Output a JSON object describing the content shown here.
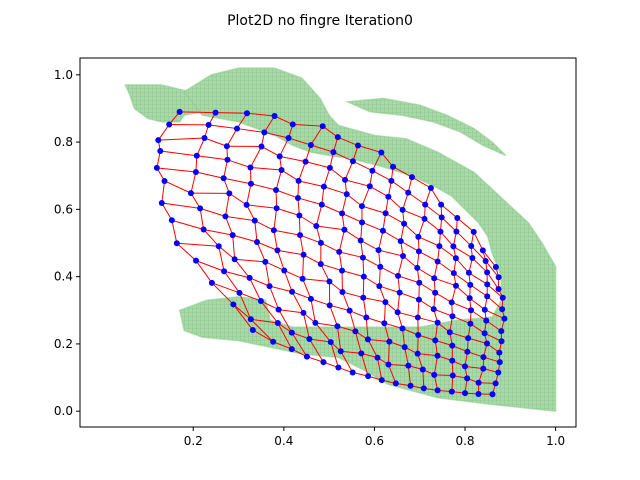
{
  "chart_data": {
    "type": "scatter",
    "title": "Plot2D no fingre Iteration0",
    "xlabel": "",
    "ylabel": "",
    "xlim": [
      -0.05,
      1.045
    ],
    "ylim": [
      -0.047,
      1.05
    ],
    "xticks": [
      0.2,
      0.4,
      0.6,
      0.8,
      1.0
    ],
    "xtick_labels": [
      "0.2",
      "0.4",
      "0.6",
      "0.8",
      "1.0"
    ],
    "yticks": [
      0.0,
      0.2,
      0.4,
      0.6,
      0.8,
      1.0
    ],
    "ytick_labels": [
      "0.0",
      "0.2",
      "0.4",
      "0.6",
      "0.8",
      "1.0"
    ],
    "grid": false,
    "colors": {
      "target_fill": "#8fce8f",
      "mesh_edges": "#ff0000",
      "mesh_nodes": "#0000ff"
    },
    "target_region": {
      "description": "green point cloud",
      "polygons": [
        [
          [
            0.05,
            0.97
          ],
          [
            0.13,
            0.97
          ],
          [
            0.19,
            0.95
          ],
          [
            0.22,
            0.93
          ],
          [
            0.22,
            0.89
          ],
          [
            0.18,
            0.88
          ],
          [
            0.17,
            0.86
          ],
          [
            0.13,
            0.86
          ],
          [
            0.1,
            0.87
          ],
          [
            0.07,
            0.9
          ],
          [
            0.06,
            0.94
          ]
        ],
        [
          [
            0.18,
            0.95
          ],
          [
            0.24,
            1.0
          ],
          [
            0.3,
            1.02
          ],
          [
            0.38,
            1.02
          ],
          [
            0.44,
            0.99
          ],
          [
            0.48,
            0.93
          ],
          [
            0.5,
            0.88
          ],
          [
            0.52,
            0.85
          ],
          [
            0.6,
            0.82
          ],
          [
            0.67,
            0.81
          ],
          [
            0.74,
            0.77
          ],
          [
            0.82,
            0.71
          ],
          [
            0.86,
            0.66
          ],
          [
            0.9,
            0.61
          ],
          [
            0.94,
            0.56
          ],
          [
            0.97,
            0.5
          ],
          [
            1.0,
            0.43
          ],
          [
            1.0,
            0.0
          ],
          [
            0.86,
            0.02
          ],
          [
            0.74,
            0.04
          ],
          [
            0.63,
            0.08
          ],
          [
            0.58,
            0.12
          ],
          [
            0.52,
            0.16
          ],
          [
            0.44,
            0.17
          ],
          [
            0.37,
            0.19
          ],
          [
            0.3,
            0.21
          ],
          [
            0.22,
            0.22
          ],
          [
            0.18,
            0.24
          ],
          [
            0.17,
            0.3
          ],
          [
            0.23,
            0.33
          ],
          [
            0.3,
            0.34
          ],
          [
            0.36,
            0.33
          ],
          [
            0.37,
            0.27
          ],
          [
            0.42,
            0.25
          ],
          [
            0.52,
            0.25
          ],
          [
            0.6,
            0.25
          ],
          [
            0.7,
            0.25
          ],
          [
            0.78,
            0.27
          ],
          [
            0.86,
            0.28
          ],
          [
            0.88,
            0.33
          ],
          [
            0.88,
            0.4
          ],
          [
            0.86,
            0.47
          ],
          [
            0.85,
            0.52
          ],
          [
            0.83,
            0.56
          ],
          [
            0.8,
            0.6
          ],
          [
            0.77,
            0.64
          ],
          [
            0.73,
            0.67
          ],
          [
            0.68,
            0.7
          ],
          [
            0.61,
            0.73
          ],
          [
            0.55,
            0.75
          ],
          [
            0.5,
            0.76
          ],
          [
            0.46,
            0.77
          ],
          [
            0.42,
            0.79
          ],
          [
            0.38,
            0.82
          ],
          [
            0.34,
            0.84
          ],
          [
            0.3,
            0.86
          ],
          [
            0.26,
            0.87
          ],
          [
            0.22,
            0.88
          ]
        ],
        [
          [
            0.54,
            0.92
          ],
          [
            0.62,
            0.93
          ],
          [
            0.7,
            0.91
          ],
          [
            0.76,
            0.88
          ],
          [
            0.82,
            0.84
          ],
          [
            0.86,
            0.8
          ],
          [
            0.89,
            0.76
          ],
          [
            0.84,
            0.79
          ],
          [
            0.79,
            0.83
          ],
          [
            0.73,
            0.86
          ],
          [
            0.66,
            0.88
          ],
          [
            0.59,
            0.89
          ]
        ]
      ]
    },
    "mesh": {
      "description": "deformed grid, nodes in blue, edges in red",
      "rows": 13,
      "cols": 17,
      "corners": {
        "top_left": [
          0.17,
          0.89
        ],
        "top_right": [
          0.87,
          0.43
        ],
        "bottom_right": [
          0.86,
          0.05
        ],
        "bottom_left": [
          0.33,
          0.24
        ],
        "left_bulge": [
          0.12,
          0.66
        ]
      }
    }
  }
}
